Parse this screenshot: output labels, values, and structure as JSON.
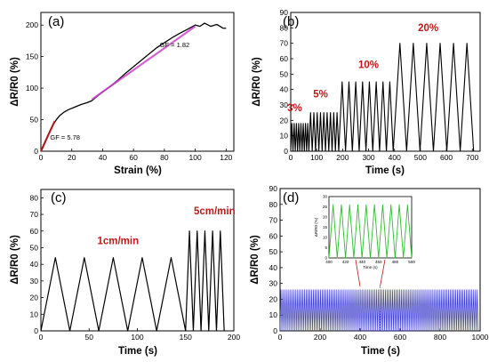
{
  "chart_data": [
    {
      "panel": "(a)",
      "type": "line",
      "xlabel": "Strain (%)",
      "ylabel": "ΔR/R0 (%)",
      "xlim": [
        0,
        125
      ],
      "ylim": [
        0,
        220
      ],
      "xticks": [
        "0",
        "20",
        "40",
        "60",
        "80",
        "100",
        "120"
      ],
      "yticks": [
        "0",
        "50",
        "100",
        "150",
        "200"
      ],
      "series": [
        {
          "color": "#000000",
          "x": [
            0,
            2,
            4,
            6,
            8,
            10,
            12,
            15,
            18,
            22,
            26,
            30,
            33,
            36,
            40,
            45,
            50,
            55,
            60,
            65,
            70,
            75,
            80,
            85,
            90,
            94,
            97,
            100,
            103,
            106,
            110,
            114,
            118,
            120
          ],
          "y": [
            0,
            10,
            22,
            33,
            42,
            50,
            56,
            62,
            66,
            70,
            74,
            77,
            80,
            86,
            94,
            103,
            113,
            124,
            134,
            144,
            154,
            164,
            172,
            180,
            187,
            192,
            196,
            200,
            198,
            203,
            198,
            201,
            195,
            195
          ]
        }
      ],
      "fits": [
        {
          "color": "#c0181a",
          "x": [
            0,
            9
          ],
          "y": [
            0,
            48
          ]
        },
        {
          "color": "#cc44cc",
          "x": [
            33,
            100
          ],
          "y": [
            82,
            198
          ]
        }
      ],
      "annotations": [
        "GF = 5.78",
        "GF = 1.82"
      ]
    },
    {
      "panel": "(b)",
      "type": "line",
      "xlabel": "Time (s)",
      "ylabel": "ΔR/R0 (%)",
      "xlim": [
        0,
        730
      ],
      "ylim": [
        0,
        90
      ],
      "xticks": [
        "0",
        "100",
        "200",
        "300",
        "400",
        "500",
        "600",
        "700"
      ],
      "yticks": [
        "0",
        "10",
        "20",
        "30",
        "40",
        "50",
        "60",
        "70",
        "80",
        "90"
      ],
      "segments": [
        {
          "label": "3%",
          "t0": 0,
          "t1": 70,
          "cycles": 8,
          "peak": 18
        },
        {
          "label": "5%",
          "t0": 70,
          "t1": 185,
          "cycles": 9,
          "peak": 25
        },
        {
          "label": "10%",
          "t0": 185,
          "t1": 395,
          "cycles": 8,
          "peak": 45
        },
        {
          "label": "20%",
          "t0": 395,
          "t1": 705,
          "cycles": 6,
          "peak": 70
        }
      ]
    },
    {
      "panel": "(c)",
      "type": "line",
      "xlabel": "Time (s)",
      "ylabel": "ΔR/R0 (%)",
      "xlim": [
        0,
        200
      ],
      "ylim": [
        0,
        85
      ],
      "xticks": [
        "0",
        "50",
        "100",
        "150",
        "200"
      ],
      "yticks": [
        "0",
        "10",
        "20",
        "30",
        "40",
        "50",
        "60",
        "70",
        "80"
      ],
      "segments": [
        {
          "label": "1cm/min",
          "t0": 0,
          "t1": 150,
          "cycles": 5,
          "peak": 44
        },
        {
          "label": "5cm/min",
          "t0": 150,
          "t1": 190,
          "cycles": 5,
          "peak": 60
        }
      ]
    },
    {
      "panel": "(d)",
      "type": "line",
      "xlabel": "Time (s)",
      "ylabel": "ΔR/R0 (%)",
      "xlim": [
        0,
        1000
      ],
      "ylim": [
        0,
        90
      ],
      "xticks": [
        "0",
        "200",
        "400",
        "600",
        "800",
        "1000"
      ],
      "yticks": [
        "0",
        "10",
        "20",
        "30",
        "40",
        "50",
        "60",
        "70",
        "80",
        "90"
      ],
      "series_color": "#3d3dcc",
      "cycles": 110,
      "peak": 26,
      "inset": {
        "xlim": [
          400,
          500
        ],
        "ylim": [
          0,
          30
        ],
        "xticks": [
          "400",
          "420",
          "440",
          "460",
          "480",
          "500"
        ],
        "yticks": [
          "0",
          "5",
          "10",
          "15",
          "20",
          "25",
          "30"
        ],
        "ylabel": "ΔR/R0 (%)",
        "xlabel": "Time (s)",
        "color": "#33bb33",
        "cycles": 10,
        "peak": 26
      }
    }
  ]
}
